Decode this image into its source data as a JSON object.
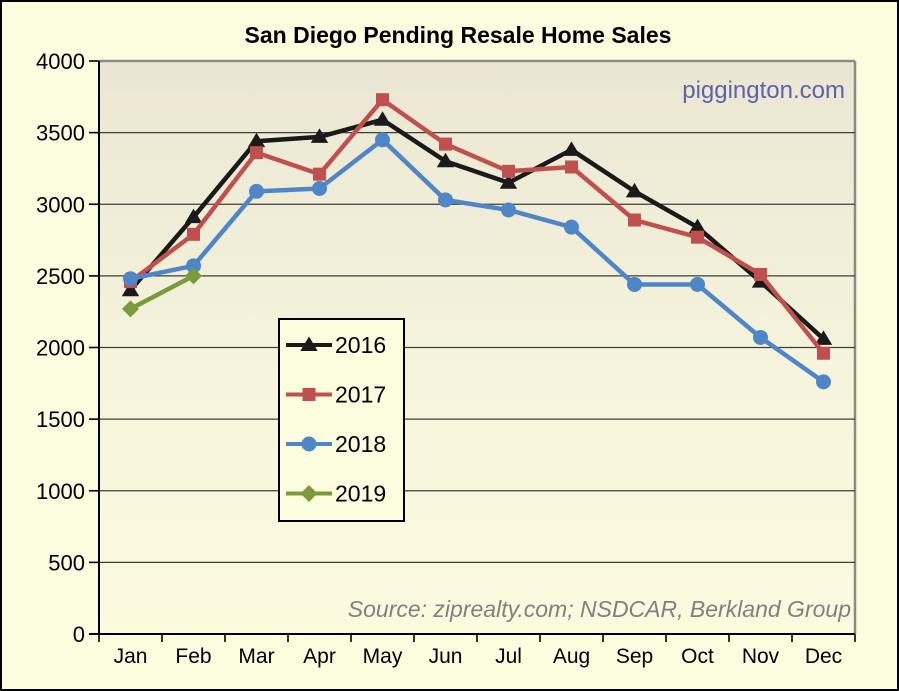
{
  "title": "San Diego Pending Resale Home Sales",
  "watermark": "piggington.com",
  "source_note": "Source: ziprealty.com; NSDCAR, Berkland Group",
  "colors": {
    "outer_background": "#FCFCDF",
    "plot_gradient_top": "#EAE6D3",
    "plot_gradient_bottom": "#FCFBDE",
    "grid_line": "#3F3F3C",
    "axis_line": "#000000",
    "plot_border": "#8B8B85",
    "watermark_text": "#5E63A8",
    "source_text": "#808080",
    "legend_background": "#FCFCDF",
    "legend_border": "#000000"
  },
  "chart_data": {
    "type": "line",
    "title": "San Diego Pending Resale Home Sales",
    "xlabel": "",
    "ylabel": "",
    "categories": [
      "Jan",
      "Feb",
      "Mar",
      "Apr",
      "May",
      "Jun",
      "Jul",
      "Aug",
      "Sep",
      "Oct",
      "Nov",
      "Dec"
    ],
    "series": [
      {
        "name": "2016",
        "color": "#1A1A1A",
        "marker": "triangle",
        "values": [
          2400,
          2910,
          3440,
          3470,
          3590,
          3300,
          3150,
          3380,
          3090,
          2840,
          2460,
          2060
        ]
      },
      {
        "name": "2017",
        "color": "#C0504D",
        "marker": "square",
        "values": [
          2460,
          2790,
          3360,
          3210,
          3730,
          3420,
          3230,
          3260,
          2890,
          2770,
          2510,
          1960
        ]
      },
      {
        "name": "2018",
        "color": "#4E86C8",
        "marker": "circle",
        "values": [
          2480,
          2570,
          3090,
          3110,
          3450,
          3030,
          2960,
          2840,
          2440,
          2440,
          2070,
          1760
        ]
      },
      {
        "name": "2019",
        "color": "#7A9B3C",
        "marker": "diamond",
        "values": [
          2270,
          2500,
          null,
          null,
          null,
          null,
          null,
          null,
          null,
          null,
          null,
          null
        ]
      }
    ],
    "ylim": [
      0,
      4000
    ],
    "yticks": [
      0,
      500,
      1000,
      1500,
      2000,
      2500,
      3000,
      3500,
      4000
    ],
    "grid": true,
    "legend_position": "inside-center-left",
    "legend_entries": [
      "2016",
      "2017",
      "2018",
      "2019"
    ]
  }
}
